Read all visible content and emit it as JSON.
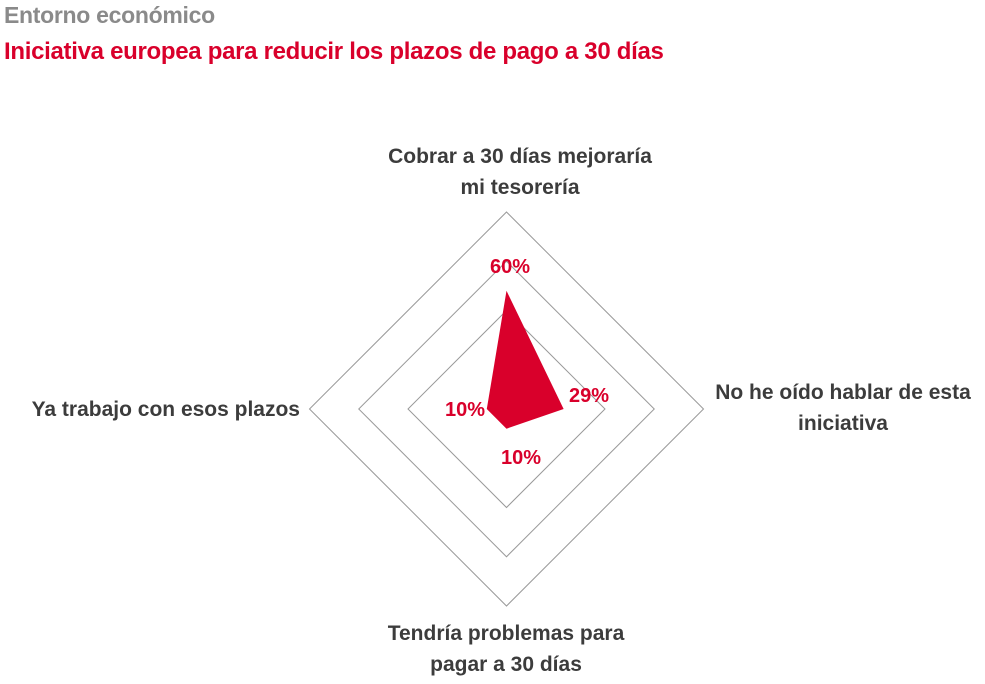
{
  "header": {
    "title": "Entorno económico",
    "subtitle": "Iniciativa europea para reducir los plazos de pago a 30 días"
  },
  "chart_data": {
    "type": "radar",
    "title": "Iniciativa europea para reducir los plazos de pago a 30 días",
    "axes": [
      {
        "label_lines": [
          "Cobrar a 30 días mejoraría",
          "mi tesorería"
        ],
        "value": 60,
        "value_label": "60%"
      },
      {
        "label_lines": [
          "No he oído hablar de esta",
          "iniciativa"
        ],
        "value": 29,
        "value_label": "29%"
      },
      {
        "label_lines": [
          "Tendría problemas para",
          "pagar a 30 días"
        ],
        "value": 10,
        "value_label": "10%"
      },
      {
        "label_lines": [
          "Ya trabajo con esos plazos"
        ],
        "value": 10,
        "value_label": "10%"
      }
    ],
    "range": [
      0,
      100
    ],
    "grid_rings": [
      50,
      75,
      100
    ],
    "colors": {
      "series": "#d9002b",
      "grid": "#999999"
    }
  }
}
